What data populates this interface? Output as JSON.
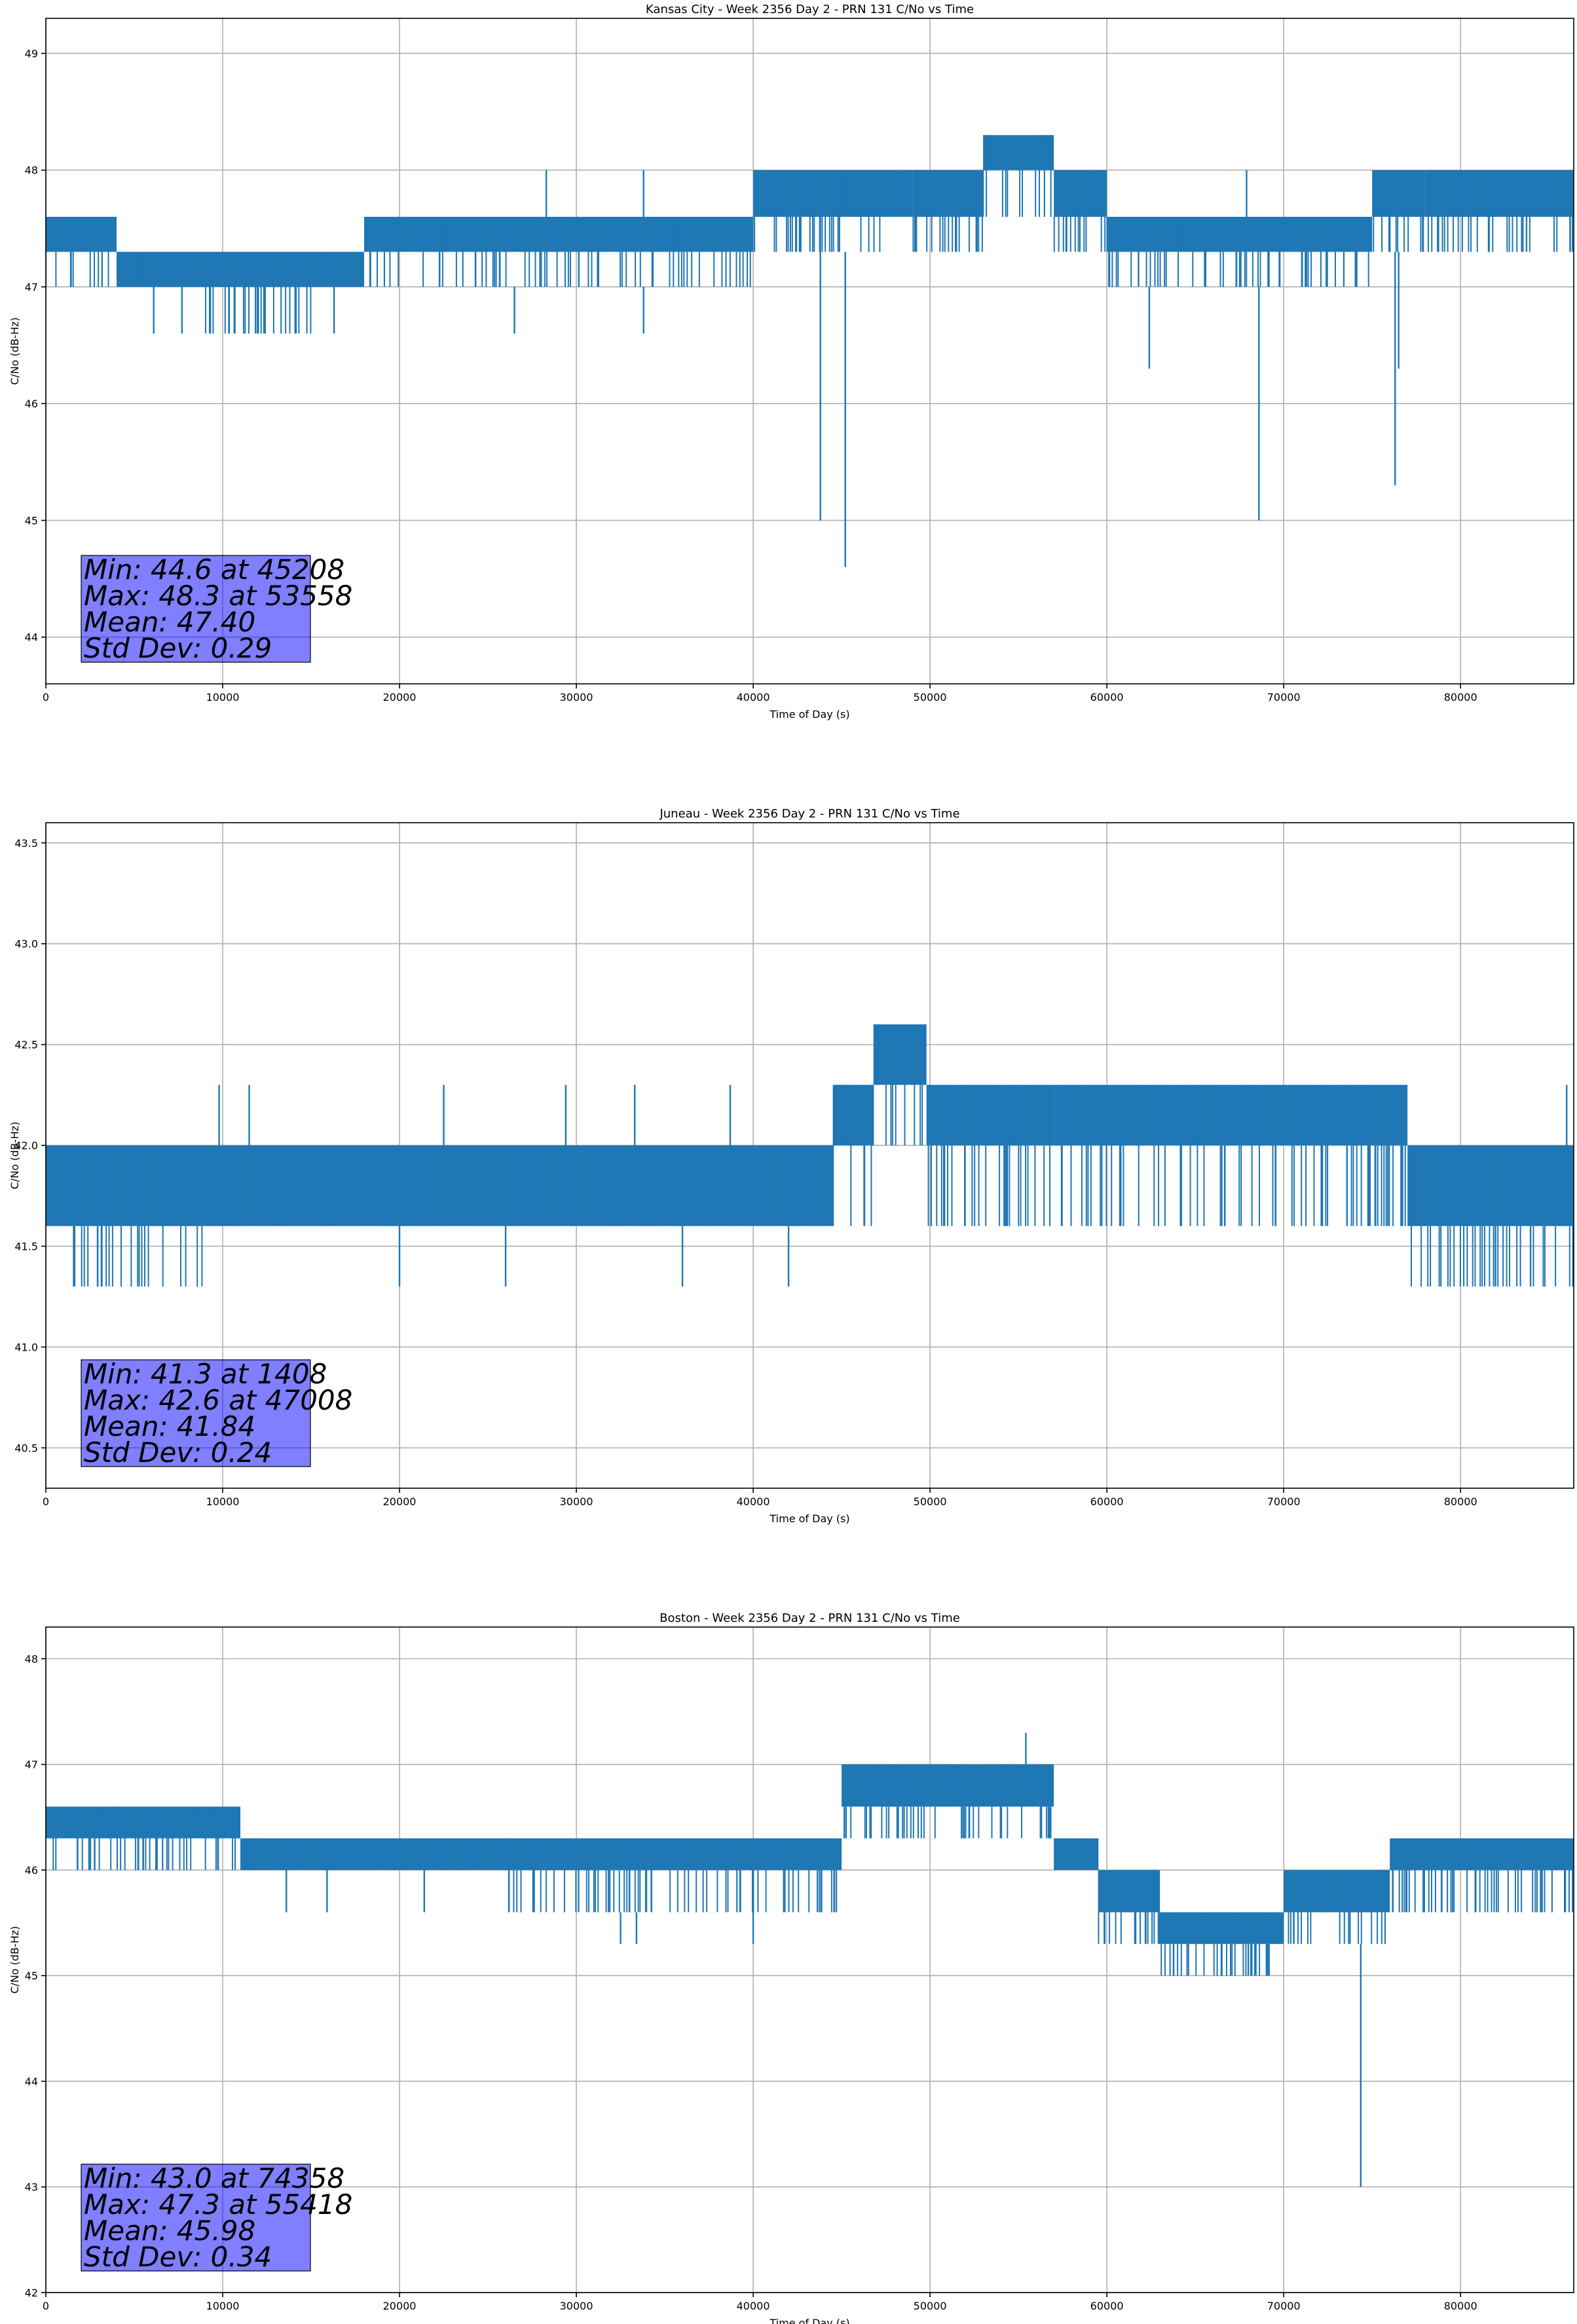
{
  "figure": {
    "background": "#ffffff",
    "series_color": "#1f77b4",
    "stats_box_color": "#0000ff"
  },
  "chart_data": [
    {
      "type": "line",
      "title": "Kansas City - Week 2356 Day 2 - PRN 131 C/No vs Time",
      "xlabel": "Time of Day (s)",
      "ylabel": "C/No (dB-Hz)",
      "xlim": [
        0,
        86400
      ],
      "ylim": [
        43.6,
        49.3
      ],
      "xticks": [
        0,
        10000,
        20000,
        30000,
        40000,
        50000,
        60000,
        70000,
        80000
      ],
      "xtick_labels": [
        "0",
        "10000",
        "20000",
        "30000",
        "40000",
        "50000",
        "60000",
        "70000",
        "80000"
      ],
      "yticks": [
        44,
        45,
        46,
        47,
        48,
        49
      ],
      "ytick_labels": [
        "44",
        "45",
        "46",
        "47",
        "48",
        "49"
      ],
      "grid": true,
      "stats": [
        "Min: 44.6 at 45208",
        "Max: 48.3 at 53558",
        "Mean: 47.40",
        "Std Dev: 0.29"
      ],
      "segments": [
        {
          "x": [
            0,
            4000
          ],
          "levels": [
            47.0,
            47.3,
            47.6
          ]
        },
        {
          "x": [
            4000,
            8000
          ],
          "levels": [
            47.0,
            47.3
          ]
        },
        {
          "x": [
            8000,
            15000
          ],
          "levels": [
            46.6,
            47.0,
            47.3
          ]
        },
        {
          "x": [
            15000,
            18000
          ],
          "levels": [
            47.0,
            47.3
          ]
        },
        {
          "x": [
            18000,
            28000
          ],
          "levels": [
            47.0,
            47.3,
            47.6
          ]
        },
        {
          "x": [
            28000,
            40000
          ],
          "levels": [
            47.0,
            47.3,
            47.6
          ]
        },
        {
          "x": [
            40000,
            49000
          ],
          "levels": [
            47.3,
            47.6,
            48.0
          ]
        },
        {
          "x": [
            49000,
            53000
          ],
          "levels": [
            47.3,
            47.6,
            48.0
          ]
        },
        {
          "x": [
            53000,
            57000
          ],
          "levels": [
            47.6,
            48.0,
            48.3
          ]
        },
        {
          "x": [
            57000,
            60000
          ],
          "levels": [
            47.3,
            47.6,
            48.0
          ]
        },
        {
          "x": [
            60000,
            65000
          ],
          "levels": [
            47.0,
            47.3,
            47.6
          ]
        },
        {
          "x": [
            65000,
            75000
          ],
          "levels": [
            47.0,
            47.3,
            47.6
          ]
        },
        {
          "x": [
            75000,
            78000
          ],
          "levels": [
            47.3,
            47.6,
            48.0
          ]
        },
        {
          "x": [
            78000,
            86400
          ],
          "levels": [
            47.3,
            47.6,
            48.0
          ]
        }
      ],
      "spikes": [
        {
          "x": 6100,
          "y": 46.6
        },
        {
          "x": 7700,
          "y": 46.6
        },
        {
          "x": 9300,
          "y": 46.6
        },
        {
          "x": 12400,
          "y": 46.6
        },
        {
          "x": 14100,
          "y": 46.6
        },
        {
          "x": 16300,
          "y": 46.6
        },
        {
          "x": 26500,
          "y": 46.6
        },
        {
          "x": 33800,
          "y": 46.6
        },
        {
          "x": 28300,
          "y": 48.0
        },
        {
          "x": 33800,
          "y": 48.0
        },
        {
          "x": 45208,
          "y": 44.6
        },
        {
          "x": 43800,
          "y": 45.0
        },
        {
          "x": 53558,
          "y": 48.3
        },
        {
          "x": 62400,
          "y": 46.3
        },
        {
          "x": 68600,
          "y": 45.0
        },
        {
          "x": 76300,
          "y": 45.3
        },
        {
          "x": 76500,
          "y": 46.3
        },
        {
          "x": 67900,
          "y": 48.0
        }
      ]
    },
    {
      "type": "line",
      "title": "Juneau - Week 2356 Day 2 - PRN 131 C/No vs Time",
      "xlabel": "Time of Day (s)",
      "ylabel": "C/No (dB-Hz)",
      "xlim": [
        0,
        86400
      ],
      "ylim": [
        40.3,
        43.6
      ],
      "xticks": [
        0,
        10000,
        20000,
        30000,
        40000,
        50000,
        60000,
        70000,
        80000
      ],
      "xtick_labels": [
        "0",
        "10000",
        "20000",
        "30000",
        "40000",
        "50000",
        "60000",
        "70000",
        "80000"
      ],
      "yticks": [
        40.5,
        41.0,
        41.5,
        42.0,
        42.5,
        43.0,
        43.5
      ],
      "ytick_labels": [
        "40.5",
        "41.0",
        "41.5",
        "42.0",
        "42.5",
        "43.0",
        "43.5"
      ],
      "grid": true,
      "stats": [
        "Min: 41.3 at 1408",
        "Max: 42.6 at 47008",
        "Mean: 41.84",
        "Std Dev: 0.24"
      ],
      "segments": [
        {
          "x": [
            0,
            1400
          ],
          "levels": [
            41.6,
            42.0
          ]
        },
        {
          "x": [
            1400,
            9000
          ],
          "levels": [
            41.3,
            41.6,
            42.0
          ]
        },
        {
          "x": [
            9000,
            44500
          ],
          "levels": [
            41.6,
            42.0
          ]
        },
        {
          "x": [
            44500,
            46800
          ],
          "levels": [
            41.6,
            42.0,
            42.3
          ]
        },
        {
          "x": [
            46800,
            49800
          ],
          "levels": [
            42.0,
            42.3,
            42.6
          ]
        },
        {
          "x": [
            49800,
            57000
          ],
          "levels": [
            41.6,
            42.0,
            42.3
          ]
        },
        {
          "x": [
            57000,
            77000
          ],
          "levels": [
            41.6,
            42.0,
            42.3
          ]
        },
        {
          "x": [
            77000,
            86400
          ],
          "levels": [
            41.3,
            41.6,
            42.0
          ]
        }
      ],
      "spikes": [
        {
          "x": 9800,
          "y": 42.3
        },
        {
          "x": 11500,
          "y": 42.3
        },
        {
          "x": 22500,
          "y": 42.3
        },
        {
          "x": 29400,
          "y": 42.3
        },
        {
          "x": 33300,
          "y": 42.3
        },
        {
          "x": 38700,
          "y": 42.3
        },
        {
          "x": 20000,
          "y": 41.3
        },
        {
          "x": 26000,
          "y": 41.3
        },
        {
          "x": 36000,
          "y": 41.3
        },
        {
          "x": 42000,
          "y": 41.3
        },
        {
          "x": 86000,
          "y": 42.3
        }
      ]
    },
    {
      "type": "line",
      "title": "Boston - Week 2356 Day 2 - PRN 131 C/No vs Time",
      "xlabel": "Time of Day (s)",
      "ylabel": "C/No (dB-Hz)",
      "xlim": [
        0,
        86400
      ],
      "ylim": [
        42.0,
        48.3
      ],
      "xticks": [
        0,
        10000,
        20000,
        30000,
        40000,
        50000,
        60000,
        70000,
        80000
      ],
      "xtick_labels": [
        "0",
        "10000",
        "20000",
        "30000",
        "40000",
        "50000",
        "60000",
        "70000",
        "80000"
      ],
      "yticks": [
        42,
        43,
        44,
        45,
        46,
        47,
        48
      ],
      "ytick_labels": [
        "42",
        "43",
        "44",
        "45",
        "46",
        "47",
        "48"
      ],
      "grid": true,
      "stats": [
        "Min: 43.0 at 74358",
        "Max: 47.3 at 55418",
        "Mean: 45.98",
        "Std Dev: 0.34"
      ],
      "segments": [
        {
          "x": [
            0,
            11000
          ],
          "levels": [
            46.0,
            46.3,
            46.6
          ]
        },
        {
          "x": [
            11000,
            26000
          ],
          "levels": [
            46.0,
            46.3
          ]
        },
        {
          "x": [
            26000,
            40500
          ],
          "levels": [
            45.6,
            46.0,
            46.3
          ]
        },
        {
          "x": [
            40500,
            45000
          ],
          "levels": [
            45.6,
            46.0,
            46.3
          ]
        },
        {
          "x": [
            45000,
            57000
          ],
          "levels": [
            46.3,
            46.6,
            47.0
          ]
        },
        {
          "x": [
            57000,
            59500
          ],
          "levels": [
            46.0,
            46.3
          ]
        },
        {
          "x": [
            59500,
            63000
          ],
          "levels": [
            45.3,
            45.6,
            46.0
          ]
        },
        {
          "x": [
            63000,
            70000
          ],
          "levels": [
            45.3,
            45.6,
            45.0
          ]
        },
        {
          "x": [
            70000,
            76000
          ],
          "levels": [
            45.3,
            45.6,
            46.0
          ]
        },
        {
          "x": [
            76000,
            86400
          ],
          "levels": [
            45.6,
            46.0,
            46.3
          ]
        }
      ],
      "spikes": [
        {
          "x": 13600,
          "y": 45.6
        },
        {
          "x": 15900,
          "y": 45.6
        },
        {
          "x": 21400,
          "y": 45.6
        },
        {
          "x": 32500,
          "y": 45.3
        },
        {
          "x": 33400,
          "y": 45.3
        },
        {
          "x": 40000,
          "y": 45.3
        },
        {
          "x": 52800,
          "y": 47.0
        },
        {
          "x": 55418,
          "y": 47.3
        },
        {
          "x": 74358,
          "y": 43.0
        },
        {
          "x": 66500,
          "y": 45.0
        },
        {
          "x": 68000,
          "y": 45.0
        }
      ]
    }
  ]
}
